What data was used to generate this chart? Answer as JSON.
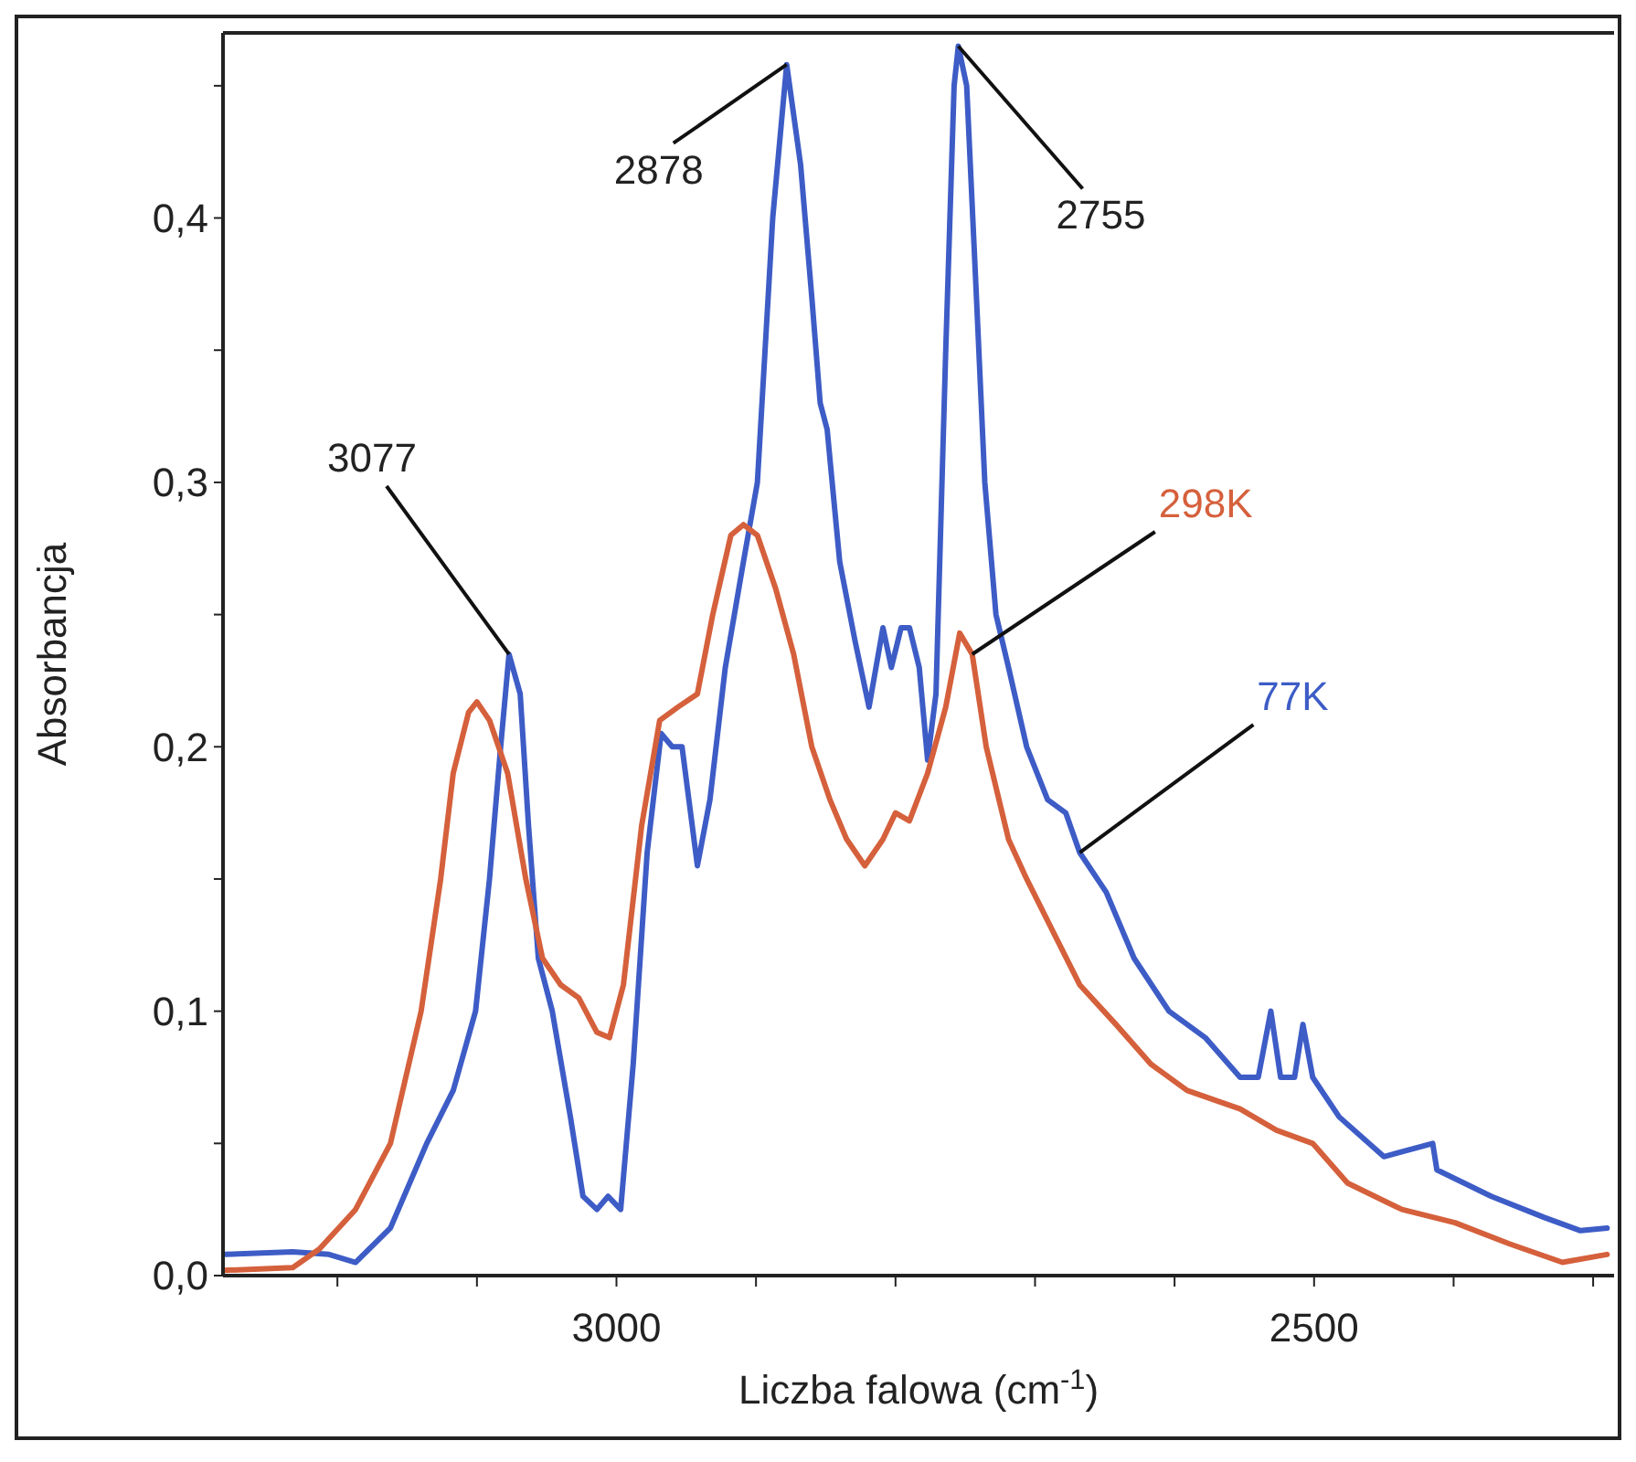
{
  "chart_data": {
    "type": "line",
    "xlabel": "Liczba falowa (cm$^{-1}$)",
    "ylabel": "Absorbancja",
    "xlim": [
      3282,
      2285
    ],
    "ylim": [
      0,
      0.47
    ],
    "xticks": [
      {
        "value": 3200,
        "label": null
      },
      {
        "value": 3100,
        "label": null
      },
      3000,
      {
        "value": 2900,
        "label": null
      },
      {
        "value": 2800,
        "label": null
      },
      {
        "value": 2700,
        "label": null
      },
      {
        "value": 2600,
        "label": null
      },
      2500,
      {
        "value": 2400,
        "label": null
      },
      {
        "value": 2300,
        "label": null
      }
    ],
    "yticks": [
      {
        "value": 0,
        "label": "0,0"
      },
      {
        "value": 0.05,
        "label": null
      },
      {
        "value": 0.1,
        "label": "0,1"
      },
      {
        "value": 0.15,
        "label": null
      },
      {
        "value": 0.2,
        "label": "0,2"
      },
      {
        "value": 0.25,
        "label": null
      },
      {
        "value": 0.3,
        "label": "0,3"
      },
      {
        "value": 0.35,
        "label": null
      },
      {
        "value": 0.4,
        "label": "0,4"
      },
      {
        "value": 0.45,
        "label": null
      }
    ],
    "grid": false,
    "marker": "none",
    "line_style": "solid",
    "series": [
      {
        "name": "77K",
        "color": "#3d5cc6",
        "x": [
          3281,
          3232,
          3206,
          3187,
          3162,
          3136,
          3117,
          3101,
          3091,
          3083,
          3077,
          3069,
          3063,
          3056,
          3046,
          3033,
          3024,
          3014,
          3006,
          2997,
          2988,
          2978,
          2968,
          2960,
          2953,
          2942,
          2933,
          2922,
          2909,
          2899,
          2888,
          2878,
          2868,
          2860,
          2854,
          2849,
          2840,
          2829,
          2819,
          2809,
          2803,
          2796,
          2790,
          2783,
          2777,
          2771,
          2764,
          2758,
          2755,
          2749,
          2742,
          2736,
          2728,
          2719,
          2706,
          2691,
          2678,
          2668,
          2649,
          2629,
          2604,
          2578,
          2553,
          2540,
          2531,
          2524,
          2514,
          2508,
          2501,
          2482,
          2450,
          2415,
          2412,
          2373,
          2335,
          2309,
          2290
        ],
        "values": [
          0.008,
          0.009,
          0.008,
          0.005,
          0.018,
          0.05,
          0.07,
          0.1,
          0.15,
          0.2,
          0.235,
          0.22,
          0.17,
          0.12,
          0.1,
          0.06,
          0.03,
          0.025,
          0.03,
          0.025,
          0.08,
          0.16,
          0.205,
          0.2,
          0.2,
          0.155,
          0.18,
          0.23,
          0.27,
          0.3,
          0.4,
          0.458,
          0.42,
          0.37,
          0.33,
          0.32,
          0.27,
          0.24,
          0.215,
          0.245,
          0.23,
          0.245,
          0.245,
          0.23,
          0.195,
          0.22,
          0.35,
          0.45,
          0.465,
          0.45,
          0.37,
          0.3,
          0.25,
          0.23,
          0.2,
          0.18,
          0.175,
          0.16,
          0.145,
          0.12,
          0.1,
          0.09,
          0.075,
          0.075,
          0.1,
          0.075,
          0.075,
          0.095,
          0.075,
          0.06,
          0.045,
          0.05,
          0.04,
          0.03,
          0.022,
          0.017,
          0.018
        ]
      },
      {
        "name": "298K",
        "color": "#d5603c",
        "x": [
          3281,
          3232,
          3213,
          3187,
          3162,
          3140,
          3126,
          3117,
          3106,
          3100,
          3091,
          3078,
          3065,
          3053,
          3040,
          3027,
          3014,
          3005,
          2995,
          2982,
          2969,
          2956,
          2942,
          2931,
          2918,
          2909,
          2899,
          2886,
          2873,
          2860,
          2847,
          2835,
          2822,
          2809,
          2800,
          2790,
          2777,
          2764,
          2754,
          2745,
          2735,
          2719,
          2706,
          2687,
          2668,
          2642,
          2617,
          2591,
          2553,
          2527,
          2501,
          2476,
          2437,
          2399,
          2360,
          2322,
          2290
        ],
        "values": [
          0.002,
          0.003,
          0.01,
          0.025,
          0.05,
          0.1,
          0.15,
          0.19,
          0.213,
          0.217,
          0.21,
          0.19,
          0.15,
          0.12,
          0.11,
          0.105,
          0.092,
          0.09,
          0.11,
          0.17,
          0.21,
          0.215,
          0.22,
          0.25,
          0.28,
          0.284,
          0.28,
          0.26,
          0.235,
          0.2,
          0.18,
          0.165,
          0.155,
          0.165,
          0.175,
          0.172,
          0.19,
          0.215,
          0.243,
          0.235,
          0.2,
          0.165,
          0.15,
          0.13,
          0.11,
          0.095,
          0.08,
          0.07,
          0.063,
          0.055,
          0.05,
          0.035,
          0.025,
          0.02,
          0.012,
          0.005,
          0.008
        ]
      }
    ],
    "annotations": [
      {
        "text": "3077",
        "x": 3077,
        "y": 0.235
      },
      {
        "text": "2878",
        "x": 2878,
        "y": 0.458
      },
      {
        "text": "2755",
        "x": 2755,
        "y": 0.465
      }
    ]
  }
}
